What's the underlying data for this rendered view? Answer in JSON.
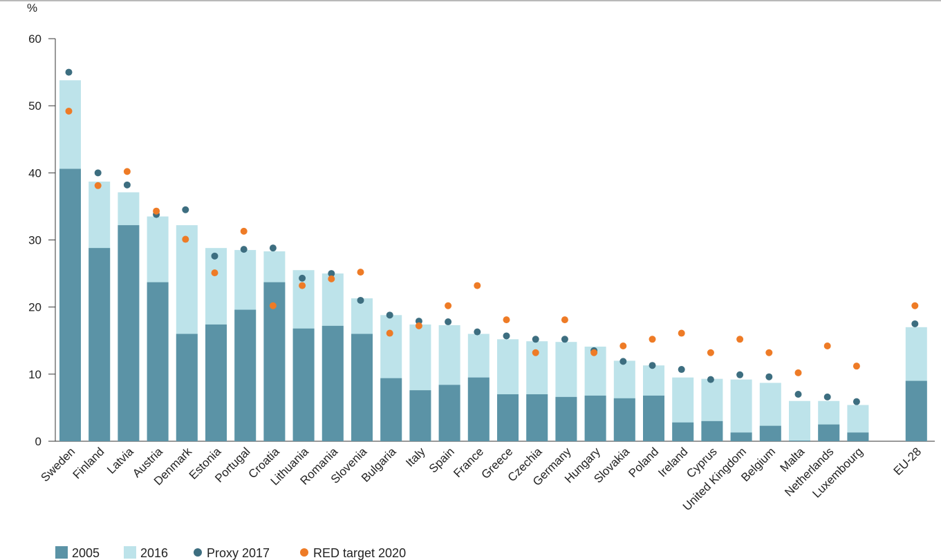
{
  "chart_data": {
    "type": "bar",
    "ylabel": "%",
    "ylim": [
      0,
      60
    ],
    "yticks": [
      0,
      10,
      20,
      30,
      40,
      50,
      60
    ],
    "grid": false,
    "legend_position": "bottom-left",
    "categories": [
      "Sweden",
      "Finland",
      "Latvia",
      "Austria",
      "Denmark",
      "Estonia",
      "Portugal",
      "Croatia",
      "Lithuania",
      "Romania",
      "Slovenia",
      "Bulgaria",
      "Italy",
      "Spain",
      "France",
      "Greece",
      "Czechia",
      "Germany",
      "Hungary",
      "Slovakia",
      "Poland",
      "Ireland",
      "Cyprus",
      "United Kingdom",
      "Belgium",
      "Malta",
      "Netherlands",
      "Luxembourg",
      "EU-28"
    ],
    "gap_before_last": true,
    "series": [
      {
        "name": "2005",
        "kind": "bar",
        "color": "#5b93a6",
        "values": [
          40.6,
          28.8,
          32.2,
          23.7,
          16.0,
          17.4,
          19.6,
          23.7,
          16.8,
          17.2,
          16.0,
          9.4,
          7.6,
          8.4,
          9.5,
          7.0,
          7.0,
          6.6,
          6.8,
          6.4,
          6.8,
          2.8,
          3.0,
          1.3,
          2.3,
          0.1,
          2.5,
          1.3,
          9.0
        ]
      },
      {
        "name": "2016",
        "kind": "bar",
        "color": "#bde3ea",
        "values": [
          53.8,
          38.7,
          37.1,
          33.5,
          32.2,
          28.8,
          28.5,
          28.3,
          25.5,
          25.0,
          21.3,
          18.8,
          17.4,
          17.3,
          16.0,
          15.2,
          14.9,
          14.8,
          14.1,
          12.0,
          11.3,
          9.5,
          9.3,
          9.2,
          8.7,
          6.0,
          6.0,
          5.4,
          17.0
        ]
      },
      {
        "name": "Proxy 2017",
        "kind": "point",
        "color": "#3d6e80",
        "values": [
          55.0,
          40.0,
          38.2,
          33.8,
          34.5,
          27.6,
          28.6,
          28.8,
          24.3,
          25.0,
          21.0,
          18.8,
          17.9,
          17.8,
          16.3,
          15.7,
          15.2,
          15.2,
          13.5,
          11.9,
          11.3,
          10.7,
          9.2,
          9.9,
          9.6,
          7.0,
          6.6,
          5.9,
          17.5
        ]
      },
      {
        "name": "RED target 2020",
        "kind": "point",
        "color": "#ee7b26",
        "values": [
          49.2,
          38.1,
          40.2,
          34.3,
          30.1,
          25.1,
          31.3,
          20.2,
          23.2,
          24.2,
          25.2,
          16.1,
          17.2,
          20.2,
          23.2,
          18.1,
          13.2,
          18.1,
          13.2,
          14.2,
          15.2,
          16.1,
          13.2,
          15.2,
          13.2,
          10.2,
          14.2,
          11.2,
          20.2
        ]
      }
    ]
  }
}
